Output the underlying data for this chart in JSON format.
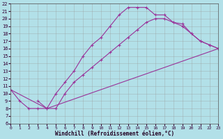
{
  "xlabel": "Windchill (Refroidissement éolien,°C)",
  "xlim": [
    0,
    23
  ],
  "ylim": [
    6,
    22
  ],
  "xticks": [
    0,
    1,
    2,
    3,
    4,
    5,
    6,
    7,
    8,
    9,
    10,
    11,
    12,
    13,
    14,
    15,
    16,
    17,
    18,
    19,
    20,
    21,
    22,
    23
  ],
  "yticks": [
    6,
    7,
    8,
    9,
    10,
    11,
    12,
    13,
    14,
    15,
    16,
    17,
    18,
    19,
    20,
    21,
    22
  ],
  "bg_color": "#b2e0e8",
  "grid_color": "#999999",
  "line_color": "#993399",
  "curve1_x": [
    0,
    1,
    2,
    3,
    4,
    5,
    6,
    7,
    8,
    9,
    10,
    11,
    12,
    13,
    14,
    15,
    16,
    17,
    18,
    19,
    20,
    21,
    22,
    23
  ],
  "curve1_y": [
    10.5,
    9.0,
    8.0,
    8.0,
    8.0,
    10.0,
    11.5,
    13.0,
    15.0,
    16.5,
    17.5,
    19.0,
    20.5,
    21.5,
    21.5,
    21.5,
    20.5,
    20.5,
    19.5,
    19.3,
    18.0,
    17.0,
    16.5,
    16.0
  ],
  "curve2_x": [
    3,
    4,
    5,
    6,
    7,
    8,
    9,
    10,
    11,
    12,
    13,
    14,
    15,
    16,
    17,
    18,
    19,
    20,
    21,
    22,
    23
  ],
  "curve2_y": [
    9.0,
    8.0,
    8.0,
    10.0,
    11.5,
    12.5,
    13.5,
    14.5,
    15.5,
    16.5,
    17.5,
    18.5,
    19.5,
    20.0,
    20.0,
    19.5,
    19.0,
    18.0,
    17.0,
    16.5,
    16.0
  ],
  "curve3_x": [
    0,
    4,
    23
  ],
  "curve3_y": [
    10.5,
    8.0,
    16.0
  ],
  "marker": "+",
  "markersize": 3,
  "linewidth": 0.8
}
